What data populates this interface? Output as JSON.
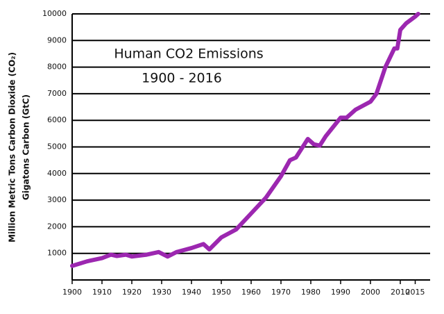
{
  "chart_data": {
    "type": "line",
    "title": "Human CO2 Emissions",
    "subtitle": "1900 - 2016",
    "y_label": "Million Metric Tons Carbon Dioxide (CO₂)",
    "y_label_2": "Gigatons Carbon (GtC)",
    "x": [
      1900,
      1905,
      1910,
      1913,
      1915,
      1918,
      1920,
      1925,
      1929,
      1932,
      1935,
      1940,
      1944,
      1946,
      1950,
      1955,
      1960,
      1965,
      1970,
      1973,
      1975,
      1979,
      1981,
      1983,
      1985,
      1990,
      1992,
      1995,
      2000,
      2002,
      2005,
      2008,
      2009,
      2010,
      2012,
      2015,
      2016
    ],
    "series": [
      {
        "name": "CO2",
        "color": "#9c27b0",
        "values": [
          530,
          700,
          820,
          950,
          900,
          950,
          880,
          950,
          1050,
          880,
          1050,
          1200,
          1350,
          1150,
          1600,
          1900,
          2500,
          3100,
          3900,
          4500,
          4600,
          5300,
          5100,
          5050,
          5400,
          6100,
          6100,
          6400,
          6700,
          7000,
          8000,
          8700,
          8700,
          9400,
          9650,
          9900,
          10000
        ]
      }
    ],
    "xlim": [
      1900,
      2020
    ],
    "ylim": [
      0,
      10000
    ],
    "xticks": [
      1900,
      1910,
      1920,
      1930,
      1940,
      1950,
      1960,
      1970,
      1980,
      1990,
      2000,
      2010,
      2015
    ],
    "yticks": [
      1000,
      2000,
      3000,
      4000,
      5000,
      6000,
      7000,
      8000,
      9000,
      10000
    ],
    "grid": true
  }
}
